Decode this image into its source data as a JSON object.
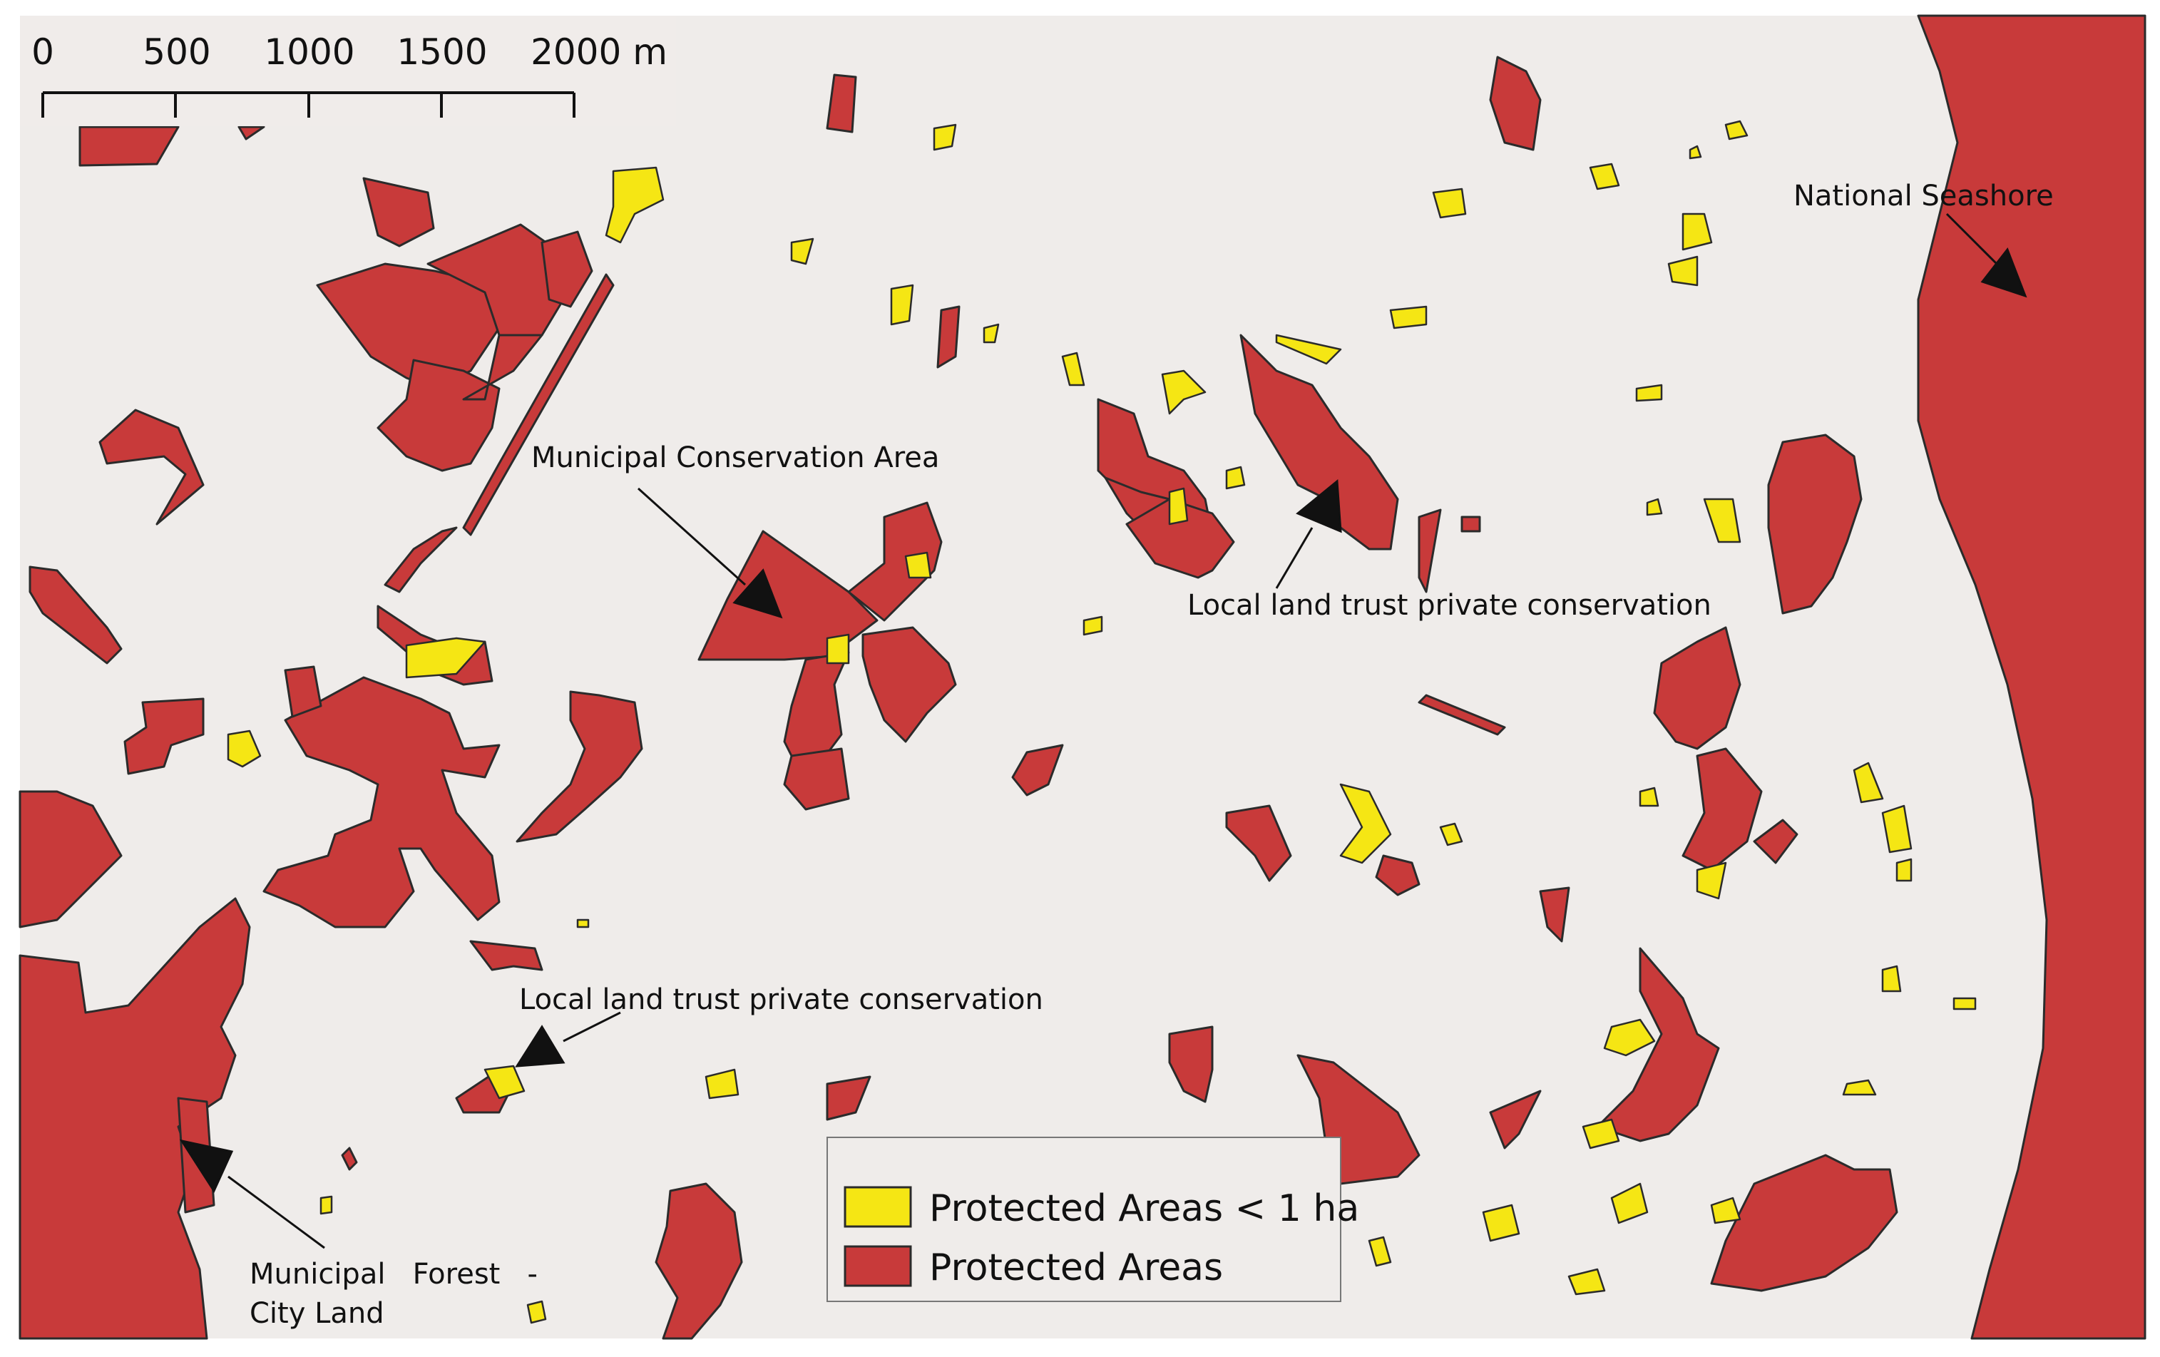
{
  "map": {
    "colors": {
      "background": "#efecea",
      "protected_area": "#c83a3a",
      "small_protected_area": "#f5e614",
      "outline": "#2b2b2b",
      "ocean_shoreline_strip": "#c83a3a"
    },
    "scale_bar": {
      "ticks": [
        "0",
        "500",
        "1000",
        "1500",
        "2000 m"
      ]
    },
    "annotations": [
      {
        "id": "national-seashore",
        "text": "National Seashore"
      },
      {
        "id": "municipal-conservation",
        "text": "Municipal Conservation Area"
      },
      {
        "id": "land-trust-east",
        "text": "Local land trust private conservation"
      },
      {
        "id": "land-trust-west",
        "text": "Local land trust private conservation"
      },
      {
        "id": "municipal-forest-1",
        "text": "Municipal   Forest   -"
      },
      {
        "id": "municipal-forest-2",
        "text": "City Land"
      }
    ],
    "legend": {
      "items": [
        {
          "label": "Protected Areas < 1 ha",
          "color": "#f5e614"
        },
        {
          "label": "Protected Areas",
          "color": "#c83a3a"
        }
      ]
    }
  }
}
